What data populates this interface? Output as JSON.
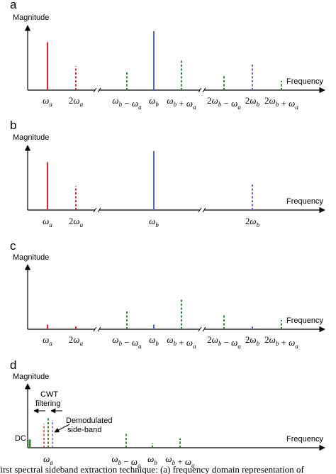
{
  "colors": {
    "red": "#e0262b",
    "blue": "#5a64d6",
    "green": "#2f8a2f",
    "axis": "#000000"
  },
  "caption": "first spectral sideband extraction technique: (a) frequency domain representation of",
  "chart_data": [
    {
      "type": "bar",
      "panel": "a",
      "ylabel": "Magnitude",
      "xlabel": "Frequency",
      "ylim": [
        0,
        1
      ],
      "categories": [
        "ω_a",
        "2ω_a",
        "ω_b − ω_a",
        "ω_b",
        "ω_b + ω_a",
        "2ω_b − ω_a",
        "2ω_b",
        "2ω_b + ω_a"
      ],
      "values": [
        0.52,
        0.26,
        0.21,
        0.64,
        0.33,
        0.15,
        0.29,
        0.1
      ],
      "bar_colors": [
        "red",
        "red",
        "green",
        "blue",
        "green",
        "green",
        "blue",
        "green"
      ],
      "bar_styles": [
        "solid",
        "dashed",
        "dashed",
        "solid",
        "dashed",
        "dashed",
        "dashed",
        "dashed"
      ],
      "axis_breaks": 2
    },
    {
      "type": "bar",
      "panel": "b",
      "ylabel": "Magnitude",
      "xlabel": "Frequency",
      "ylim": [
        0,
        1
      ],
      "categories": [
        "ω_a",
        "2ω_a",
        "ω_b",
        "2ω_b"
      ],
      "values": [
        0.52,
        0.26,
        0.64,
        0.29
      ],
      "bar_colors": [
        "red",
        "red",
        "blue",
        "blue"
      ],
      "bar_styles": [
        "solid",
        "dashed",
        "solid",
        "dashed"
      ],
      "axis_breaks": 2
    },
    {
      "type": "bar",
      "panel": "c",
      "ylabel": "Magnitude",
      "xlabel": "Frequency",
      "ylim": [
        0,
        1
      ],
      "categories": [
        "ω_a",
        "2ω_a",
        "ω_b − ω_a",
        "ω_b",
        "ω_b + ω_a",
        "2ω_b − ω_a",
        "2ω_b",
        "2ω_b + ω_a"
      ],
      "values": [
        0.05,
        0.03,
        0.21,
        0.05,
        0.33,
        0.15,
        0.03,
        0.1
      ],
      "bar_colors": [
        "red",
        "red",
        "green",
        "blue",
        "green",
        "green",
        "blue",
        "green"
      ],
      "bar_styles": [
        "solid",
        "solid",
        "dashed",
        "solid",
        "dashed",
        "dashed",
        "solid",
        "dashed"
      ],
      "axis_breaks": 2
    },
    {
      "type": "bar",
      "panel": "d",
      "ylabel": "Magnitude",
      "xlabel": "Frequency",
      "ylim": [
        0,
        1
      ],
      "categories": [
        "DC",
        "ω_a",
        "ω_b − ω_a",
        "ω_b",
        "ω_b + ω_a"
      ],
      "values": [
        0.09,
        0.33,
        0.15,
        0.05,
        0.1
      ],
      "bar_colors": [
        "green",
        "green",
        "green",
        "green",
        "green"
      ],
      "bar_styles": [
        "solid",
        "dashed",
        "dashed",
        "dashed",
        "dashed"
      ],
      "annotations": [
        "CWT",
        "filtering",
        "Demodulated",
        "side-band"
      ]
    }
  ]
}
